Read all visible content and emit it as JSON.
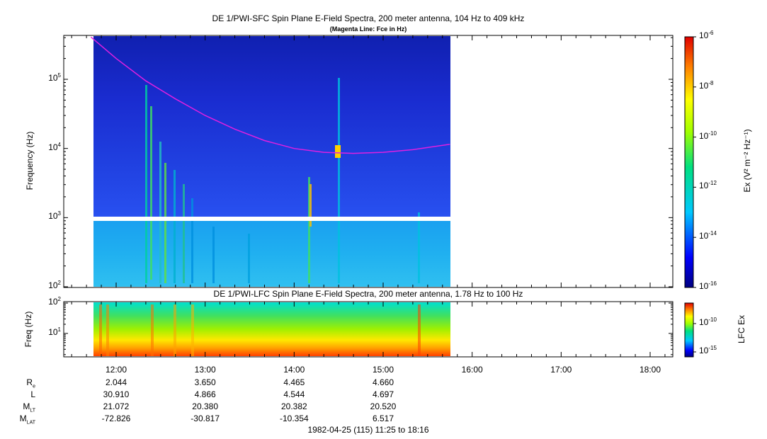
{
  "upper_panel": {
    "title": "DE 1/PWI-SFC  Spin Plane E-Field Spectra, 200 meter antenna, 104 Hz to 409 kHz",
    "subtitle": "(Magenta Line: Fce in Hz)",
    "ylabel": "Frequency (Hz)",
    "yticks": [
      {
        "base": "10",
        "exp": "2"
      },
      {
        "base": "10",
        "exp": "3"
      },
      {
        "base": "10",
        "exp": "4"
      },
      {
        "base": "10",
        "exp": "5"
      }
    ],
    "colorbar_label": "Ex (V² m⁻² Hz⁻¹)",
    "colorbar_ticks": [
      {
        "base": "10",
        "exp": "-16"
      },
      {
        "base": "10",
        "exp": "-14"
      },
      {
        "base": "10",
        "exp": "-12"
      },
      {
        "base": "10",
        "exp": "-10"
      },
      {
        "base": "10",
        "exp": "-8"
      },
      {
        "base": "10",
        "exp": "-6"
      }
    ]
  },
  "lower_panel": {
    "title": "DE 1/PWI-LFC  Spin Plane E-Field Spectra, 200 meter antenna, 1.78 Hz to 100 Hz",
    "ylabel": "Freq (Hz)",
    "yticks": [
      {
        "base": "10",
        "exp": "1"
      },
      {
        "base": "10",
        "exp": "2"
      }
    ],
    "colorbar_label": "LFC Ex",
    "colorbar_ticks": [
      {
        "base": "10",
        "exp": "-15"
      },
      {
        "base": "10",
        "exp": "-10"
      }
    ]
  },
  "x_ticks": [
    "12:00",
    "13:00",
    "14:00",
    "15:00",
    "16:00",
    "17:00",
    "18:00"
  ],
  "ephemeris": {
    "rows": [
      {
        "label": "R",
        "sub": "e",
        "values": [
          "2.044",
          "3.650",
          "4.465",
          "4.660"
        ]
      },
      {
        "label": "L",
        "sub": "",
        "values": [
          "30.910",
          "4.866",
          "4.544",
          "4.697"
        ]
      },
      {
        "label": "M",
        "sub": "LT",
        "values": [
          "21.072",
          "20.380",
          "20.382",
          "20.520"
        ]
      },
      {
        "label": "M",
        "sub": "LAT",
        "values": [
          "-72.826",
          "-30.817",
          "-10.354",
          "6.517"
        ]
      }
    ]
  },
  "date_label": "1982-04-25 (115) 11:25 to 18:16",
  "colors": {
    "magenta_line": "#e020e0",
    "background_blue": "#1a2cc8"
  },
  "chart_data": [
    {
      "type": "heatmap",
      "title": "DE 1/PWI-SFC  Spin Plane E-Field Spectra, 200 meter antenna, 104 Hz to 409 kHz",
      "xlabel": "",
      "ylabel": "Frequency (Hz)",
      "y_scale": "log",
      "ylim": [
        100,
        409000
      ],
      "xlim": [
        "11:25",
        "18:16"
      ],
      "data_coverage": [
        "11:43",
        "15:45"
      ],
      "color_scale": "log",
      "clim": [
        1e-16,
        1e-06
      ],
      "series": [
        {
          "name": "Fce",
          "x": [
            "11:43",
            "12:00",
            "12:20",
            "12:40",
            "13:00",
            "13:20",
            "13:40",
            "14:00",
            "14:20",
            "14:40",
            "15:00",
            "15:20",
            "15:45"
          ],
          "y": [
            409000,
            200000,
            95000,
            52000,
            30000,
            19000,
            13000,
            10000,
            8800,
            8500,
            8800,
            9600,
            11500
          ]
        }
      ]
    },
    {
      "type": "heatmap",
      "title": "DE 1/PWI-LFC  Spin Plane E-Field Spectra, 200 meter antenna, 1.78 Hz to 100 Hz",
      "xlabel": "1982-04-25 (115) 11:25 to 18:16",
      "ylabel": "Freq (Hz)",
      "y_scale": "log",
      "ylim": [
        1.78,
        100
      ],
      "xlim": [
        "11:25",
        "18:16"
      ],
      "data_coverage": [
        "11:43",
        "15:45"
      ],
      "color_scale": "log",
      "clim": [
        1e-16,
        1e-08
      ]
    }
  ]
}
